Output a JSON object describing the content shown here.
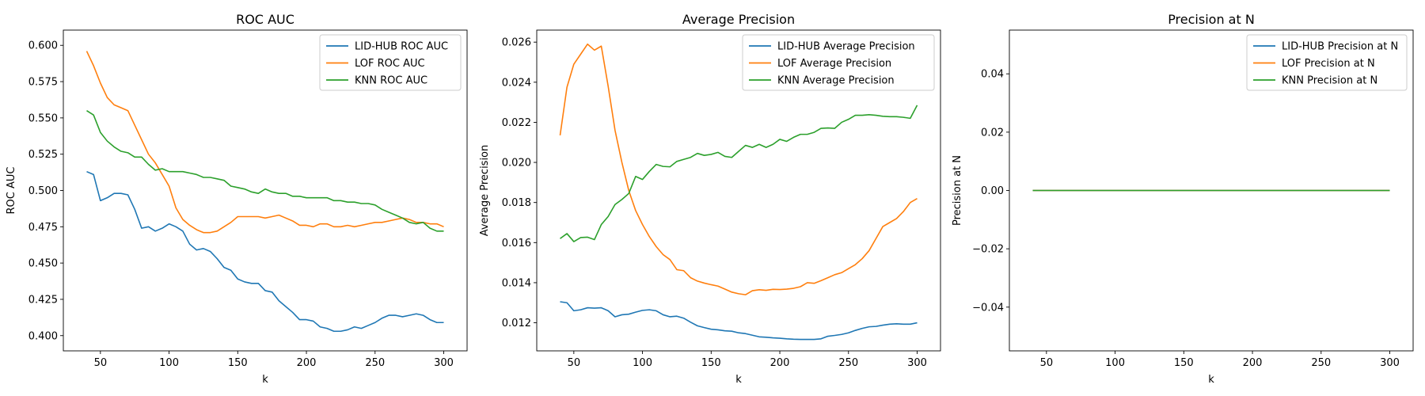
{
  "figure": {
    "background": "#ffffff"
  },
  "colors": {
    "blue": "#1f77b4",
    "orange": "#ff7f0e",
    "green": "#2ca02c"
  },
  "chart_data": [
    {
      "type": "line",
      "title": "ROC AUC",
      "xlabel": "k",
      "ylabel": "ROC AUC",
      "xlim": [
        23,
        317
      ],
      "ylim": [
        0.3895,
        0.6105
      ],
      "xticks": [
        50,
        100,
        150,
        200,
        250,
        300
      ],
      "xtick_labels": [
        "50",
        "100",
        "150",
        "200",
        "250",
        "300"
      ],
      "yticks": [
        0.4,
        0.425,
        0.45,
        0.475,
        0.5,
        0.525,
        0.55,
        0.575,
        0.6
      ],
      "ytick_labels": [
        "0.400",
        "0.425",
        "0.450",
        "0.475",
        "0.500",
        "0.525",
        "0.550",
        "0.575",
        "0.600"
      ],
      "legend": "upper right",
      "grid": false,
      "x": [
        40,
        45,
        50,
        55,
        60,
        65,
        70,
        75,
        80,
        85,
        90,
        95,
        100,
        105,
        110,
        115,
        120,
        125,
        130,
        135,
        140,
        145,
        150,
        155,
        160,
        165,
        170,
        175,
        180,
        185,
        190,
        195,
        200,
        205,
        210,
        215,
        220,
        225,
        230,
        235,
        240,
        245,
        250,
        255,
        260,
        265,
        270,
        275,
        280,
        285,
        290,
        295,
        300
      ],
      "series": [
        {
          "name": "LID-HUB ROC AUC",
          "color": "#1f77b4",
          "values": [
            0.513,
            0.511,
            0.493,
            0.495,
            0.498,
            0.498,
            0.497,
            0.487,
            0.474,
            0.475,
            0.472,
            0.474,
            0.477,
            0.475,
            0.472,
            0.463,
            0.459,
            0.46,
            0.458,
            0.453,
            0.447,
            0.445,
            0.439,
            0.437,
            0.436,
            0.436,
            0.431,
            0.43,
            0.424,
            0.42,
            0.416,
            0.411,
            0.411,
            0.41,
            0.406,
            0.405,
            0.403,
            0.403,
            0.404,
            0.406,
            0.405,
            0.407,
            0.409,
            0.412,
            0.414,
            0.414,
            0.413,
            0.414,
            0.415,
            0.414,
            0.411,
            0.409,
            0.409
          ]
        },
        {
          "name": "LOF ROC AUC",
          "color": "#ff7f0e",
          "values": [
            0.596,
            0.586,
            0.574,
            0.564,
            0.559,
            0.557,
            0.555,
            0.545,
            0.535,
            0.525,
            0.519,
            0.511,
            0.503,
            0.488,
            0.48,
            0.476,
            0.473,
            0.471,
            0.471,
            0.472,
            0.475,
            0.478,
            0.482,
            0.482,
            0.482,
            0.482,
            0.481,
            0.482,
            0.483,
            0.481,
            0.479,
            0.476,
            0.476,
            0.475,
            0.477,
            0.477,
            0.475,
            0.475,
            0.476,
            0.475,
            0.476,
            0.477,
            0.478,
            0.478,
            0.479,
            0.48,
            0.481,
            0.48,
            0.478,
            0.478,
            0.477,
            0.477,
            0.475
          ]
        },
        {
          "name": "KNN ROC AUC",
          "color": "#2ca02c",
          "values": [
            0.555,
            0.552,
            0.54,
            0.534,
            0.53,
            0.527,
            0.526,
            0.523,
            0.523,
            0.518,
            0.514,
            0.515,
            0.513,
            0.513,
            0.513,
            0.512,
            0.511,
            0.509,
            0.509,
            0.508,
            0.507,
            0.503,
            0.502,
            0.501,
            0.499,
            0.498,
            0.501,
            0.499,
            0.498,
            0.498,
            0.496,
            0.496,
            0.495,
            0.495,
            0.495,
            0.495,
            0.493,
            0.493,
            0.492,
            0.492,
            0.491,
            0.491,
            0.49,
            0.487,
            0.485,
            0.483,
            0.481,
            0.478,
            0.477,
            0.478,
            0.474,
            0.472,
            0.472
          ]
        }
      ]
    },
    {
      "type": "line",
      "title": "Average Precision",
      "xlabel": "k",
      "ylabel": "Average Precision",
      "xlim": [
        23,
        317
      ],
      "ylim": [
        0.0106,
        0.0266
      ],
      "xticks": [
        50,
        100,
        150,
        200,
        250,
        300
      ],
      "xtick_labels": [
        "50",
        "100",
        "150",
        "200",
        "250",
        "300"
      ],
      "yticks": [
        0.012,
        0.014,
        0.016,
        0.018,
        0.02,
        0.022,
        0.024,
        0.026
      ],
      "ytick_labels": [
        "0.012",
        "0.014",
        "0.016",
        "0.018",
        "0.020",
        "0.022",
        "0.024",
        "0.026"
      ],
      "legend": "upper right",
      "grid": false,
      "x": [
        40,
        45,
        50,
        55,
        60,
        65,
        70,
        75,
        80,
        85,
        90,
        95,
        100,
        105,
        110,
        115,
        120,
        125,
        130,
        135,
        140,
        145,
        150,
        155,
        160,
        165,
        170,
        175,
        180,
        185,
        190,
        195,
        200,
        205,
        210,
        215,
        220,
        225,
        230,
        235,
        240,
        245,
        250,
        255,
        260,
        265,
        270,
        275,
        280,
        285,
        290,
        295,
        300
      ],
      "series": [
        {
          "name": "LID-HUB Average Precision",
          "color": "#1f77b4",
          "values": [
            0.01305,
            0.013,
            0.0126,
            0.01265,
            0.01275,
            0.01273,
            0.01275,
            0.0126,
            0.0123,
            0.0124,
            0.01243,
            0.01253,
            0.01262,
            0.01265,
            0.0126,
            0.0124,
            0.0123,
            0.01233,
            0.01223,
            0.01203,
            0.01185,
            0.01176,
            0.01168,
            0.01165,
            0.0116,
            0.01158,
            0.0115,
            0.01146,
            0.01138,
            0.0113,
            0.01128,
            0.01125,
            0.01123,
            0.0112,
            0.01118,
            0.01117,
            0.01117,
            0.01117,
            0.0112,
            0.01133,
            0.01137,
            0.01142,
            0.0115,
            0.01162,
            0.01172,
            0.0118,
            0.01182,
            0.01188,
            0.01193,
            0.01195,
            0.01193,
            0.01193,
            0.012
          ]
        },
        {
          "name": "LOF Average Precision",
          "color": "#ff7f0e",
          "values": [
            0.02135,
            0.02375,
            0.0249,
            0.0254,
            0.0259,
            0.0256,
            0.0258,
            0.0238,
            0.0216,
            0.02,
            0.0186,
            0.0176,
            0.0169,
            0.0163,
            0.0158,
            0.0154,
            0.01515,
            0.01465,
            0.0146,
            0.01425,
            0.01408,
            0.01398,
            0.0139,
            0.01383,
            0.01368,
            0.01353,
            0.01345,
            0.0134,
            0.0136,
            0.01365,
            0.01362,
            0.01367,
            0.01366,
            0.01368,
            0.01372,
            0.0138,
            0.014,
            0.01397,
            0.0141,
            0.01425,
            0.0144,
            0.0145,
            0.0147,
            0.0149,
            0.0152,
            0.0156,
            0.0162,
            0.0168,
            0.017,
            0.0172,
            0.01755,
            0.018,
            0.0182
          ]
        },
        {
          "name": "KNN Average Precision",
          "color": "#2ca02c",
          "values": [
            0.0162,
            0.01645,
            0.01605,
            0.01625,
            0.01627,
            0.01615,
            0.0169,
            0.0173,
            0.0179,
            0.01815,
            0.01845,
            0.0193,
            0.01915,
            0.01955,
            0.0199,
            0.0198,
            0.01978,
            0.02005,
            0.02015,
            0.02025,
            0.02045,
            0.02035,
            0.0204,
            0.0205,
            0.0203,
            0.02025,
            0.02055,
            0.02085,
            0.02075,
            0.0209,
            0.02075,
            0.0209,
            0.02115,
            0.02105,
            0.02125,
            0.0214,
            0.0214,
            0.0215,
            0.0217,
            0.02172,
            0.0217,
            0.022,
            0.02215,
            0.02235,
            0.02235,
            0.02238,
            0.02235,
            0.0223,
            0.02228,
            0.02228,
            0.02225,
            0.0222,
            0.02285
          ]
        }
      ]
    },
    {
      "type": "line",
      "title": "Precision at N",
      "xlabel": "k",
      "ylabel": "Precision at N",
      "xlim": [
        23,
        317
      ],
      "ylim": [
        -0.055,
        0.055
      ],
      "xticks": [
        50,
        100,
        150,
        200,
        250,
        300
      ],
      "xtick_labels": [
        "50",
        "100",
        "150",
        "200",
        "250",
        "300"
      ],
      "yticks": [
        -0.04,
        -0.02,
        0.0,
        0.02,
        0.04
      ],
      "ytick_labels": [
        "−0.04",
        "−0.02",
        "0.00",
        "0.02",
        "0.04"
      ],
      "legend": "upper right",
      "grid": false,
      "x": [
        40,
        45,
        50,
        55,
        60,
        65,
        70,
        75,
        80,
        85,
        90,
        95,
        100,
        105,
        110,
        115,
        120,
        125,
        130,
        135,
        140,
        145,
        150,
        155,
        160,
        165,
        170,
        175,
        180,
        185,
        190,
        195,
        200,
        205,
        210,
        215,
        220,
        225,
        230,
        235,
        240,
        245,
        250,
        255,
        260,
        265,
        270,
        275,
        280,
        285,
        290,
        295,
        300
      ],
      "series": [
        {
          "name": "LID-HUB Precision at N",
          "color": "#1f77b4",
          "values": [
            0,
            0,
            0,
            0,
            0,
            0,
            0,
            0,
            0,
            0,
            0,
            0,
            0,
            0,
            0,
            0,
            0,
            0,
            0,
            0,
            0,
            0,
            0,
            0,
            0,
            0,
            0,
            0,
            0,
            0,
            0,
            0,
            0,
            0,
            0,
            0,
            0,
            0,
            0,
            0,
            0,
            0,
            0,
            0,
            0,
            0,
            0,
            0,
            0,
            0,
            0,
            0,
            0
          ]
        },
        {
          "name": "LOF Precision at N",
          "color": "#ff7f0e",
          "values": [
            0,
            0,
            0,
            0,
            0,
            0,
            0,
            0,
            0,
            0,
            0,
            0,
            0,
            0,
            0,
            0,
            0,
            0,
            0,
            0,
            0,
            0,
            0,
            0,
            0,
            0,
            0,
            0,
            0,
            0,
            0,
            0,
            0,
            0,
            0,
            0,
            0,
            0,
            0,
            0,
            0,
            0,
            0,
            0,
            0,
            0,
            0,
            0,
            0,
            0,
            0,
            0,
            0
          ]
        },
        {
          "name": "KNN Precision at N",
          "color": "#2ca02c",
          "values": [
            0,
            0,
            0,
            0,
            0,
            0,
            0,
            0,
            0,
            0,
            0,
            0,
            0,
            0,
            0,
            0,
            0,
            0,
            0,
            0,
            0,
            0,
            0,
            0,
            0,
            0,
            0,
            0,
            0,
            0,
            0,
            0,
            0,
            0,
            0,
            0,
            0,
            0,
            0,
            0,
            0,
            0,
            0,
            0,
            0,
            0,
            0,
            0,
            0,
            0,
            0,
            0,
            0
          ]
        }
      ]
    }
  ]
}
